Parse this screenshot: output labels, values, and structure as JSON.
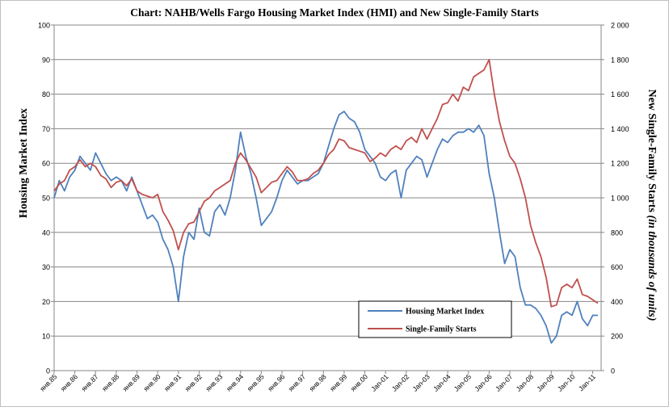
{
  "chart_data": {
    "type": "line",
    "title": "Chart:  NAHB/Wells Fargo Housing Market Index (HMI) and New Single-Family Starts",
    "ylabel_left": "Housing Market Index",
    "ylabel_right_prefix": "New Single-Family Starts ",
    "ylabel_right_italic": "(in thousands of units)",
    "ylim_left": [
      0,
      100
    ],
    "ylim_right": [
      0,
      2000
    ],
    "yticks_left": [
      "0",
      "10",
      "20",
      "30",
      "40",
      "50",
      "60",
      "70",
      "80",
      "90",
      "100"
    ],
    "yticks_right": [
      "0",
      "200",
      "400",
      "600",
      "800",
      "1 000",
      "1 200",
      "1 400",
      "1 600",
      "1 800",
      "2 000"
    ],
    "x_range": [
      1985.0,
      2011.25
    ],
    "x_ticks": [
      {
        "x": 1985,
        "label": "янв.85"
      },
      {
        "x": 1986,
        "label": "янв.86"
      },
      {
        "x": 1987,
        "label": "янв.87"
      },
      {
        "x": 1988,
        "label": "янв.88"
      },
      {
        "x": 1989,
        "label": "янв.89"
      },
      {
        "x": 1990,
        "label": "янв.90"
      },
      {
        "x": 1991,
        "label": "янв.91"
      },
      {
        "x": 1992,
        "label": "янв.92"
      },
      {
        "x": 1993,
        "label": "янв.93"
      },
      {
        "x": 1994,
        "label": "янв.94"
      },
      {
        "x": 1995,
        "label": "янв.95"
      },
      {
        "x": 1996,
        "label": "янв.96"
      },
      {
        "x": 1997,
        "label": "янв.97"
      },
      {
        "x": 1998,
        "label": "янв.98"
      },
      {
        "x": 1999,
        "label": "янв.99"
      },
      {
        "x": 2000,
        "label": "янв.00"
      },
      {
        "x": 2001,
        "label": "Jan-01"
      },
      {
        "x": 2002,
        "label": "Jan-02"
      },
      {
        "x": 2003,
        "label": "Jan-03"
      },
      {
        "x": 2004,
        "label": "Jan-04"
      },
      {
        "x": 2005,
        "label": "Jan-05"
      },
      {
        "x": 2006,
        "label": "Jan-06"
      },
      {
        "x": 2007,
        "label": "Jan-07"
      },
      {
        "x": 2008,
        "label": "Jan-08"
      },
      {
        "x": 2009,
        "label": "Jan-09"
      },
      {
        "x": 2010,
        "label": "Jan-10"
      },
      {
        "x": 2011,
        "label": "Jan-11"
      }
    ],
    "grid": true,
    "legend_position": "bottom-right",
    "series": [
      {
        "name": "Housing Market Index",
        "axis": "left",
        "color": "#4F81BD",
        "points": [
          [
            1985.0,
            50
          ],
          [
            1985.25,
            55
          ],
          [
            1985.5,
            52
          ],
          [
            1985.75,
            56
          ],
          [
            1986.0,
            58
          ],
          [
            1986.25,
            62
          ],
          [
            1986.5,
            60
          ],
          [
            1986.75,
            58
          ],
          [
            1987.0,
            63
          ],
          [
            1987.25,
            60
          ],
          [
            1987.5,
            57
          ],
          [
            1987.75,
            55
          ],
          [
            1988.0,
            56
          ],
          [
            1988.25,
            55
          ],
          [
            1988.5,
            52
          ],
          [
            1988.75,
            56
          ],
          [
            1989.0,
            52
          ],
          [
            1989.25,
            48
          ],
          [
            1989.5,
            44
          ],
          [
            1989.75,
            45
          ],
          [
            1990.0,
            43
          ],
          [
            1990.25,
            38
          ],
          [
            1990.5,
            35
          ],
          [
            1990.75,
            30
          ],
          [
            1991.0,
            20
          ],
          [
            1991.25,
            33
          ],
          [
            1991.5,
            40
          ],
          [
            1991.75,
            38
          ],
          [
            1992.0,
            47
          ],
          [
            1992.25,
            40
          ],
          [
            1992.5,
            39
          ],
          [
            1992.75,
            46
          ],
          [
            1993.0,
            48
          ],
          [
            1993.25,
            45
          ],
          [
            1993.5,
            50
          ],
          [
            1993.75,
            58
          ],
          [
            1994.0,
            69
          ],
          [
            1994.25,
            62
          ],
          [
            1994.5,
            57
          ],
          [
            1994.75,
            50
          ],
          [
            1995.0,
            42
          ],
          [
            1995.25,
            44
          ],
          [
            1995.5,
            46
          ],
          [
            1995.75,
            50
          ],
          [
            1996.0,
            55
          ],
          [
            1996.25,
            58
          ],
          [
            1996.5,
            56
          ],
          [
            1996.75,
            54
          ],
          [
            1997.0,
            55
          ],
          [
            1997.25,
            55
          ],
          [
            1997.5,
            56
          ],
          [
            1997.75,
            57
          ],
          [
            1998.0,
            60
          ],
          [
            1998.25,
            65
          ],
          [
            1998.5,
            70
          ],
          [
            1998.75,
            74
          ],
          [
            1999.0,
            75
          ],
          [
            1999.25,
            73
          ],
          [
            1999.5,
            72
          ],
          [
            1999.75,
            69
          ],
          [
            2000.0,
            64
          ],
          [
            2000.25,
            62
          ],
          [
            2000.5,
            60
          ],
          [
            2000.75,
            56
          ],
          [
            2001.0,
            55
          ],
          [
            2001.25,
            57
          ],
          [
            2001.5,
            58
          ],
          [
            2001.75,
            50
          ],
          [
            2002.0,
            58
          ],
          [
            2002.25,
            60
          ],
          [
            2002.5,
            62
          ],
          [
            2002.75,
            61
          ],
          [
            2003.0,
            56
          ],
          [
            2003.25,
            60
          ],
          [
            2003.5,
            64
          ],
          [
            2003.75,
            67
          ],
          [
            2004.0,
            66
          ],
          [
            2004.25,
            68
          ],
          [
            2004.5,
            69
          ],
          [
            2004.75,
            69
          ],
          [
            2005.0,
            70
          ],
          [
            2005.25,
            69
          ],
          [
            2005.5,
            71
          ],
          [
            2005.75,
            68
          ],
          [
            2006.0,
            57
          ],
          [
            2006.25,
            50
          ],
          [
            2006.5,
            40
          ],
          [
            2006.75,
            31
          ],
          [
            2007.0,
            35
          ],
          [
            2007.25,
            33
          ],
          [
            2007.5,
            24
          ],
          [
            2007.75,
            19
          ],
          [
            2008.0,
            19
          ],
          [
            2008.25,
            18
          ],
          [
            2008.5,
            16
          ],
          [
            2008.75,
            13
          ],
          [
            2009.0,
            8
          ],
          [
            2009.25,
            10
          ],
          [
            2009.5,
            16
          ],
          [
            2009.75,
            17
          ],
          [
            2010.0,
            16
          ],
          [
            2010.25,
            20
          ],
          [
            2010.5,
            15
          ],
          [
            2010.75,
            13
          ],
          [
            2011.0,
            16
          ],
          [
            2011.25,
            16
          ]
        ]
      },
      {
        "name": "Single-Family Starts",
        "axis": "right",
        "color": "#C0504D",
        "points": [
          [
            1985.0,
            1040
          ],
          [
            1985.25,
            1080
          ],
          [
            1985.5,
            1100
          ],
          [
            1985.75,
            1160
          ],
          [
            1986.0,
            1180
          ],
          [
            1986.25,
            1220
          ],
          [
            1986.5,
            1180
          ],
          [
            1986.75,
            1200
          ],
          [
            1987.0,
            1180
          ],
          [
            1987.25,
            1130
          ],
          [
            1987.5,
            1110
          ],
          [
            1987.75,
            1060
          ],
          [
            1988.0,
            1090
          ],
          [
            1988.25,
            1100
          ],
          [
            1988.5,
            1070
          ],
          [
            1988.75,
            1110
          ],
          [
            1989.0,
            1040
          ],
          [
            1989.25,
            1020
          ],
          [
            1989.5,
            1010
          ],
          [
            1989.75,
            1000
          ],
          [
            1990.0,
            1020
          ],
          [
            1990.25,
            920
          ],
          [
            1990.5,
            870
          ],
          [
            1990.75,
            810
          ],
          [
            1991.0,
            700
          ],
          [
            1991.25,
            800
          ],
          [
            1991.5,
            850
          ],
          [
            1991.75,
            860
          ],
          [
            1992.0,
            920
          ],
          [
            1992.25,
            980
          ],
          [
            1992.5,
            1000
          ],
          [
            1992.75,
            1040
          ],
          [
            1993.0,
            1060
          ],
          [
            1993.25,
            1080
          ],
          [
            1993.5,
            1100
          ],
          [
            1993.75,
            1200
          ],
          [
            1994.0,
            1260
          ],
          [
            1994.25,
            1220
          ],
          [
            1994.5,
            1170
          ],
          [
            1994.75,
            1120
          ],
          [
            1995.0,
            1030
          ],
          [
            1995.25,
            1060
          ],
          [
            1995.5,
            1090
          ],
          [
            1995.75,
            1100
          ],
          [
            1996.0,
            1140
          ],
          [
            1996.25,
            1180
          ],
          [
            1996.5,
            1150
          ],
          [
            1996.75,
            1100
          ],
          [
            1997.0,
            1100
          ],
          [
            1997.25,
            1110
          ],
          [
            1997.5,
            1140
          ],
          [
            1997.75,
            1160
          ],
          [
            1998.0,
            1200
          ],
          [
            1998.25,
            1250
          ],
          [
            1998.5,
            1280
          ],
          [
            1998.75,
            1340
          ],
          [
            1999.0,
            1330
          ],
          [
            1999.25,
            1290
          ],
          [
            1999.5,
            1280
          ],
          [
            1999.75,
            1270
          ],
          [
            2000.0,
            1260
          ],
          [
            2000.25,
            1210
          ],
          [
            2000.5,
            1230
          ],
          [
            2000.75,
            1260
          ],
          [
            2001.0,
            1240
          ],
          [
            2001.25,
            1280
          ],
          [
            2001.5,
            1300
          ],
          [
            2001.75,
            1280
          ],
          [
            2002.0,
            1330
          ],
          [
            2002.25,
            1350
          ],
          [
            2002.5,
            1320
          ],
          [
            2002.75,
            1400
          ],
          [
            2003.0,
            1340
          ],
          [
            2003.25,
            1400
          ],
          [
            2003.5,
            1460
          ],
          [
            2003.75,
            1540
          ],
          [
            2004.0,
            1550
          ],
          [
            2004.25,
            1600
          ],
          [
            2004.5,
            1560
          ],
          [
            2004.75,
            1640
          ],
          [
            2005.0,
            1620
          ],
          [
            2005.25,
            1700
          ],
          [
            2005.5,
            1720
          ],
          [
            2005.75,
            1740
          ],
          [
            2006.0,
            1800
          ],
          [
            2006.25,
            1600
          ],
          [
            2006.5,
            1440
          ],
          [
            2006.75,
            1330
          ],
          [
            2007.0,
            1240
          ],
          [
            2007.25,
            1200
          ],
          [
            2007.5,
            1110
          ],
          [
            2007.75,
            1000
          ],
          [
            2008.0,
            840
          ],
          [
            2008.25,
            740
          ],
          [
            2008.5,
            660
          ],
          [
            2008.75,
            540
          ],
          [
            2009.0,
            370
          ],
          [
            2009.25,
            380
          ],
          [
            2009.5,
            480
          ],
          [
            2009.75,
            500
          ],
          [
            2010.0,
            480
          ],
          [
            2010.25,
            530
          ],
          [
            2010.5,
            440
          ],
          [
            2010.75,
            430
          ],
          [
            2011.0,
            410
          ],
          [
            2011.25,
            390
          ]
        ]
      }
    ]
  }
}
